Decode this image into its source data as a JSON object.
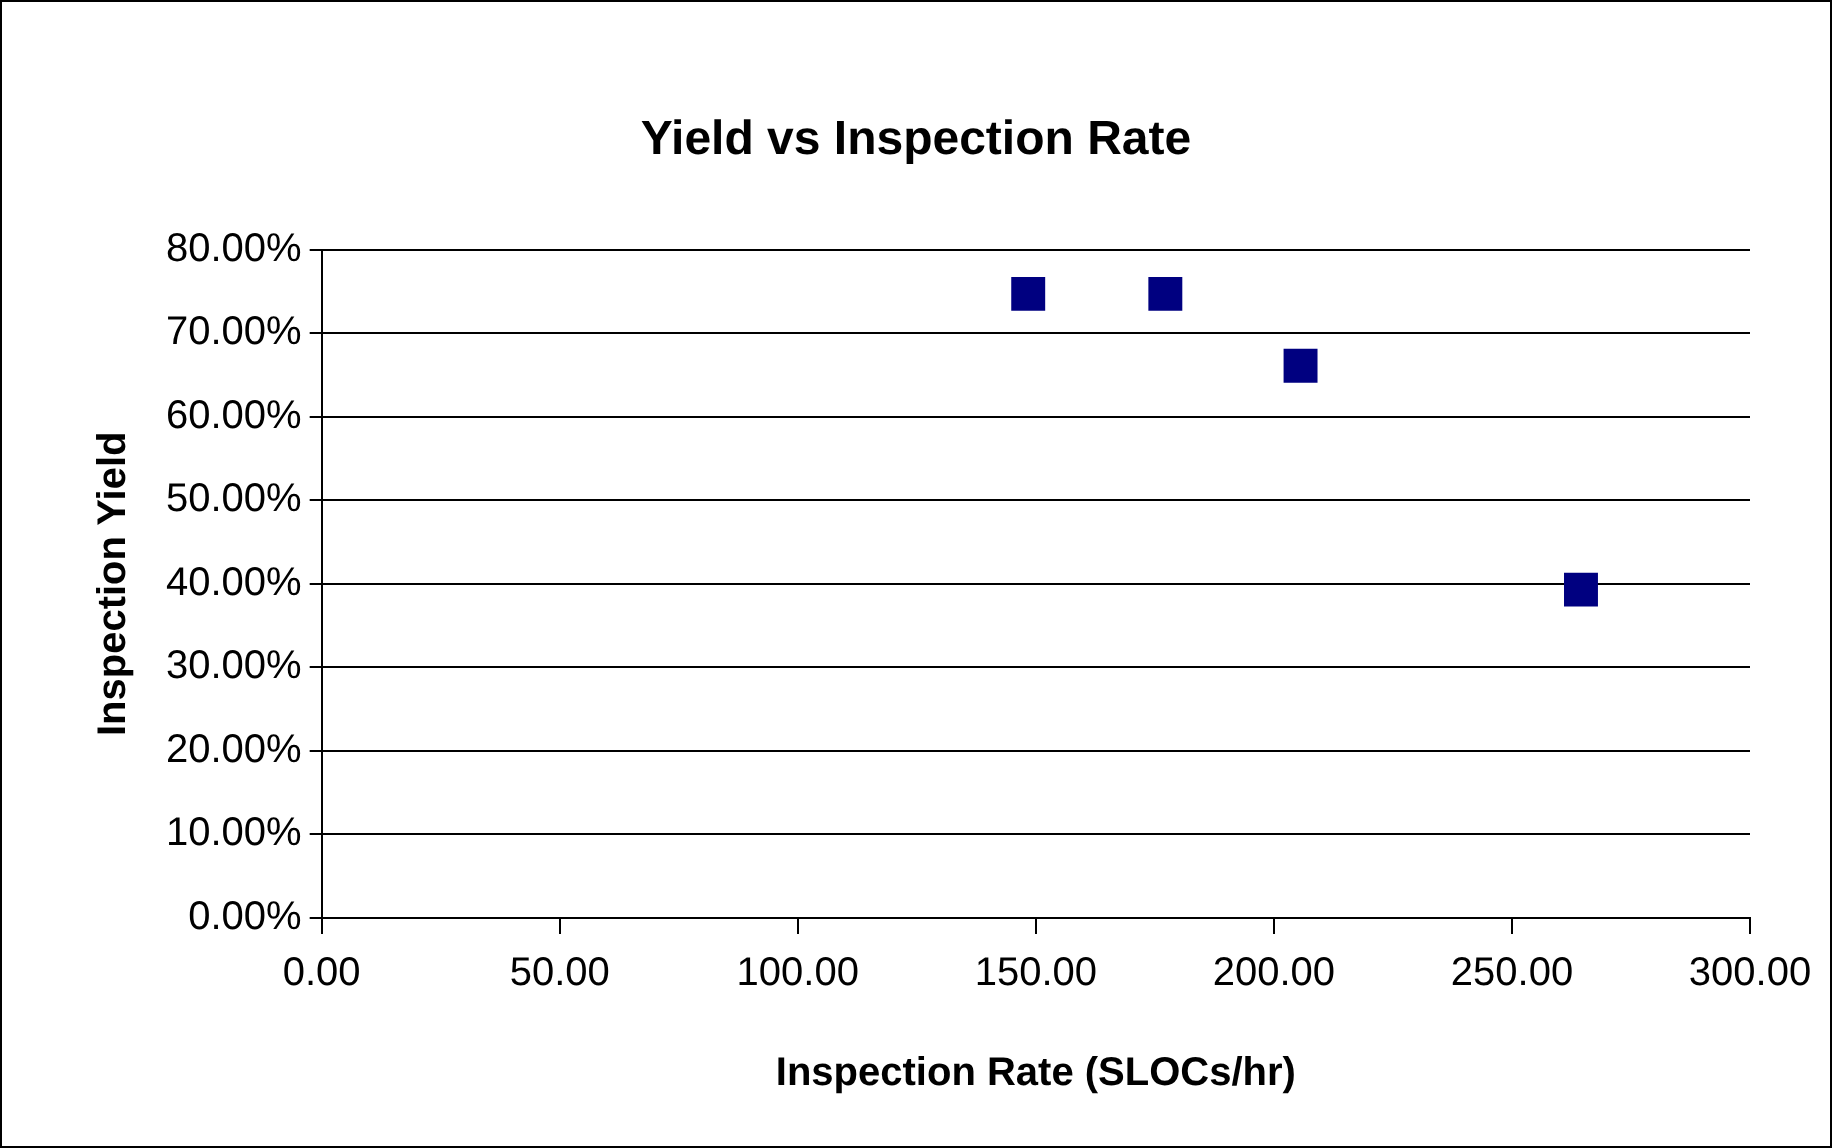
{
  "chart_data": {
    "type": "scatter",
    "title": "Yield vs Inspection Rate",
    "xlabel": "Inspection Rate (SLOCs/hr)",
    "ylabel": "Inspection Yield",
    "x": [
      148.4,
      177.2,
      205.6,
      264.5
    ],
    "series": [
      {
        "color": "#000080",
        "values": [
          74.7,
          74.7,
          66.1,
          39.3
        ]
      }
    ],
    "xlim": [
      0,
      300
    ],
    "xticks": [
      {
        "value": 0,
        "label": "0.00"
      },
      {
        "value": 50,
        "label": "50.00"
      },
      {
        "value": 100,
        "label": "100.00"
      },
      {
        "value": 150,
        "label": "150.00"
      },
      {
        "value": 200,
        "label": "200.00"
      },
      {
        "value": 250,
        "label": "250.00"
      },
      {
        "value": 300,
        "label": "300.00"
      }
    ],
    "ylim": [
      0,
      80
    ],
    "yticks": [
      {
        "value": 0,
        "label": "0.00%"
      },
      {
        "value": 10,
        "label": "10.00%"
      },
      {
        "value": 20,
        "label": "20.00%"
      },
      {
        "value": 30,
        "label": "30.00%"
      },
      {
        "value": 40,
        "label": "40.00%"
      },
      {
        "value": 50,
        "label": "50.00%"
      },
      {
        "value": 60,
        "label": "60.00%"
      },
      {
        "value": 70,
        "label": "70.00%"
      },
      {
        "value": 80,
        "label": "80.00%"
      }
    ],
    "grid": "y",
    "legend": false,
    "marker": "square"
  }
}
